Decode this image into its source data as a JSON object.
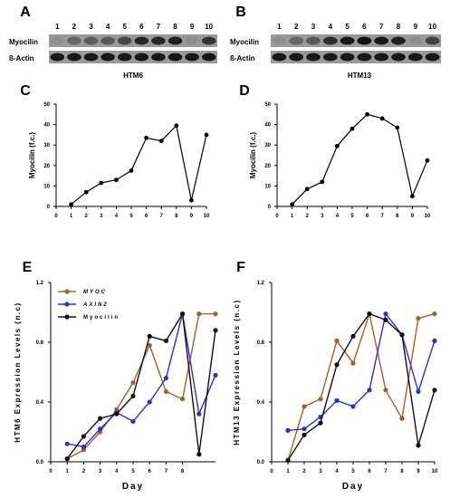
{
  "blots": [
    {
      "panel": "A",
      "caption": "HTM6",
      "lanes": [
        "1",
        "2",
        "3",
        "4",
        "5",
        "6",
        "7",
        "8",
        "9",
        "10"
      ],
      "rows": [
        {
          "label": "Myocilin",
          "intensities": [
            0.05,
            0.35,
            0.4,
            0.45,
            0.55,
            0.8,
            0.8,
            0.85,
            0.05,
            0.7
          ]
        },
        {
          "label": "ß-Actin",
          "intensities": [
            0.9,
            0.9,
            0.9,
            0.9,
            0.9,
            0.9,
            0.9,
            0.9,
            0.9,
            0.9
          ]
        }
      ]
    },
    {
      "panel": "B",
      "caption": "HTM13",
      "lanes": [
        "1",
        "2",
        "3",
        "4",
        "5",
        "6",
        "7",
        "8",
        "9",
        "10"
      ],
      "rows": [
        {
          "label": "Myocilin",
          "intensities": [
            0.05,
            0.35,
            0.45,
            0.75,
            0.9,
            0.95,
            0.9,
            0.85,
            0.05,
            0.6
          ]
        },
        {
          "label": "ß-Actin",
          "intensities": [
            0.9,
            0.9,
            0.9,
            0.9,
            0.9,
            0.9,
            0.9,
            0.9,
            0.9,
            0.9
          ]
        }
      ]
    }
  ],
  "chart_data": [
    {
      "panel": "C",
      "type": "line",
      "ylabel": "Myocilin (f.c.)",
      "x": [
        1,
        2,
        3,
        4,
        5,
        6,
        7,
        8,
        9,
        10
      ],
      "series": [
        {
          "values": [
            1,
            7,
            11.5,
            13,
            17.5,
            33.5,
            32,
            39.5,
            3,
            35
          ],
          "color": "#000000"
        }
      ],
      "xlim": [
        0,
        10
      ],
      "ylim": [
        0,
        50
      ],
      "xticks": [
        "0",
        "1",
        "2",
        "3",
        "4",
        "5",
        "6",
        "7",
        "8",
        "9",
        "10"
      ],
      "yticks": [
        "0",
        "10",
        "20",
        "30",
        "40",
        "50"
      ]
    },
    {
      "panel": "D",
      "type": "line",
      "ylabel": "Myocilin (f.c.)",
      "x": [
        1,
        2,
        3,
        4,
        5,
        6,
        7,
        8,
        9,
        10
      ],
      "series": [
        {
          "values": [
            1,
            8.5,
            12,
            29.5,
            38,
            45,
            43,
            38.5,
            5,
            22.5
          ],
          "color": "#000000"
        }
      ],
      "xlim": [
        0,
        10
      ],
      "ylim": [
        0,
        50
      ],
      "xticks": [
        "0",
        "1",
        "2",
        "3",
        "4",
        "5",
        "6",
        "7",
        "8",
        "9",
        "10"
      ],
      "yticks": [
        "0",
        "10",
        "20",
        "30",
        "40",
        "50"
      ]
    },
    {
      "panel": "E",
      "type": "line",
      "ylabel": "HTM6 Expression Levels (n.c)",
      "xlabel": "Day",
      "legend": "top-left",
      "xlim": [
        0,
        10
      ],
      "ylim": [
        0,
        1.2
      ],
      "xticks": [
        "0",
        "1",
        "2",
        "3",
        "4",
        "5",
        "6",
        "7",
        "8"
      ],
      "yticks": [
        "0.0",
        "0.4",
        "0.8",
        "1.2"
      ],
      "series": [
        {
          "name": "MYOC",
          "color": "#a0622a",
          "x": [
            1,
            2,
            3,
            4,
            5,
            6,
            7,
            8,
            9,
            10
          ],
          "values": [
            0.02,
            0.08,
            0.2,
            0.35,
            0.53,
            0.78,
            0.47,
            0.42,
            0.99,
            0.99
          ]
        },
        {
          "name": "AXIN2",
          "color": "#2b2fcf",
          "x": [
            1,
            2,
            3,
            4,
            5,
            6,
            7,
            8,
            9,
            10
          ],
          "values": [
            0.12,
            0.1,
            0.22,
            0.33,
            0.27,
            0.4,
            0.56,
            0.99,
            0.32,
            0.58
          ]
        },
        {
          "name": "Myocilin",
          "color": "#111111",
          "x": [
            1,
            2,
            3,
            4,
            5,
            6,
            7,
            8,
            9,
            10
          ],
          "values": [
            0.02,
            0.17,
            0.29,
            0.32,
            0.44,
            0.84,
            0.81,
            0.99,
            0.05,
            0.88
          ]
        }
      ]
    },
    {
      "panel": "F",
      "type": "line",
      "ylabel": "HTM13 Expression Levels (n.c)",
      "xlabel": "Day",
      "xlim": [
        0,
        10
      ],
      "ylim": [
        0,
        1.2
      ],
      "xticks": [
        "0",
        "1",
        "2",
        "3",
        "4",
        "5",
        "6",
        "7",
        "8",
        "9",
        "10"
      ],
      "yticks": [
        "0.0",
        "0.4",
        "0.8",
        "1.2"
      ],
      "series": [
        {
          "name": "MYOC",
          "color": "#a0622a",
          "x": [
            1,
            2,
            3,
            4,
            5,
            6,
            7,
            8,
            9,
            10
          ],
          "values": [
            0.01,
            0.37,
            0.42,
            0.81,
            0.66,
            0.99,
            0.48,
            0.29,
            0.96,
            0.99
          ]
        },
        {
          "name": "AXIN2",
          "color": "#2b2fcf",
          "x": [
            1,
            2,
            3,
            4,
            5,
            6,
            7,
            8,
            9,
            10
          ],
          "values": [
            0.21,
            0.22,
            0.3,
            0.41,
            0.37,
            0.48,
            0.99,
            0.85,
            0.47,
            0.81
          ]
        },
        {
          "name": "Myocilin",
          "color": "#111111",
          "x": [
            1,
            2,
            3,
            4,
            5,
            6,
            7,
            8,
            9,
            10
          ],
          "values": [
            0.01,
            0.18,
            0.26,
            0.65,
            0.84,
            0.99,
            0.95,
            0.85,
            0.11,
            0.48
          ]
        }
      ]
    }
  ]
}
